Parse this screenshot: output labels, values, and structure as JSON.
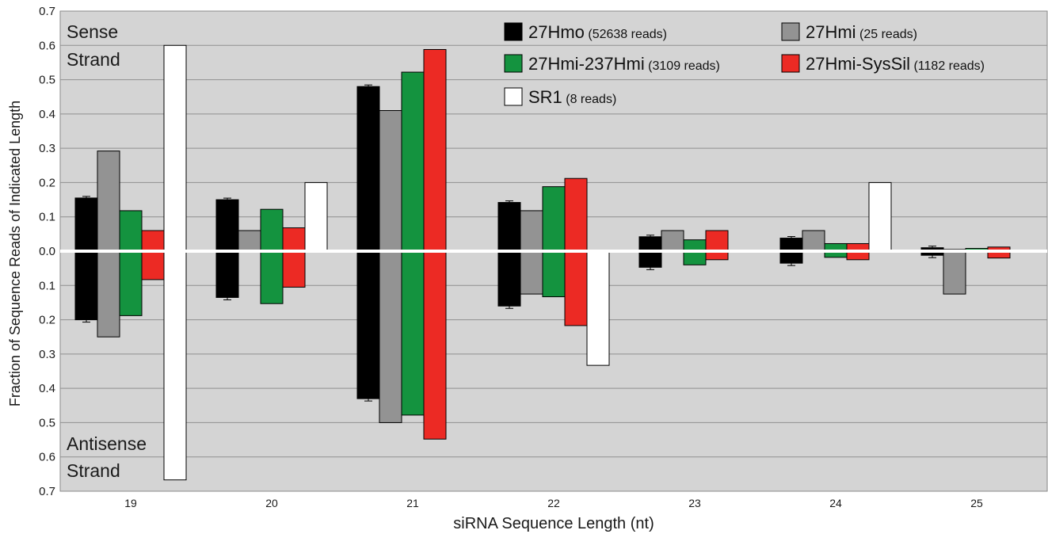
{
  "chart_data": {
    "type": "bar",
    "title": "",
    "xlabel": "siRNA Sequence Length (nt)",
    "ylabel": "Fraction of Sequence Reads of Indicated Length",
    "categories": [
      "19",
      "20",
      "21",
      "22",
      "23",
      "24",
      "25"
    ],
    "ylim": [
      -0.7,
      0.7
    ],
    "yticks": [
      "0.7",
      "0.6",
      "0.5",
      "0.4",
      "0.3",
      "0.2",
      "0.1",
      "0.0",
      "0.1",
      "0.2",
      "0.3",
      "0.4",
      "0.5",
      "0.6",
      "0.7"
    ],
    "grid": true,
    "top_region_label": [
      "Sense",
      "Strand"
    ],
    "bottom_region_label": [
      "Antisense",
      "Strand"
    ],
    "legend_position": "top-right",
    "series": [
      {
        "name": "27Hmo",
        "reads_label": "(52638 reads)",
        "color": "#000000",
        "sense": [
          0.155,
          0.15,
          0.48,
          0.142,
          0.042,
          0.038,
          0.01
        ],
        "antisense": [
          0.2,
          0.135,
          0.43,
          0.16,
          0.047,
          0.035,
          0.012
        ],
        "error_bars": true
      },
      {
        "name": "27Hmi",
        "reads_label": "(25 reads)",
        "color": "#939393",
        "sense": [
          0.292,
          0.06,
          0.41,
          0.118,
          0.06,
          0.06,
          0.005
        ],
        "antisense": [
          0.25,
          0.0,
          0.5,
          0.125,
          0.0,
          0.0,
          0.125
        ]
      },
      {
        "name": "27Hmi-237Hmi",
        "reads_label": "(3109 reads)",
        "color": "#14933f",
        "sense": [
          0.118,
          0.122,
          0.522,
          0.188,
          0.033,
          0.022,
          0.008
        ],
        "antisense": [
          0.188,
          0.153,
          0.478,
          0.133,
          0.04,
          0.018,
          0.002
        ]
      },
      {
        "name": "27Hmi-SysSil",
        "reads_label": "(1182 reads)",
        "color": "#ec2a24",
        "sense": [
          0.06,
          0.068,
          0.588,
          0.212,
          0.06,
          0.022,
          0.012
        ],
        "antisense": [
          0.083,
          0.105,
          0.548,
          0.217,
          0.025,
          0.025,
          0.02
        ]
      },
      {
        "name": "SR1",
        "reads_label": "(8 reads)",
        "color": "#ffffff",
        "sense": [
          0.6,
          0.2,
          0.0,
          0.0,
          0.0,
          0.2,
          0.0
        ],
        "antisense": [
          0.667,
          0.0,
          0.0,
          0.333,
          0.0,
          0.0,
          0.0
        ]
      }
    ]
  }
}
